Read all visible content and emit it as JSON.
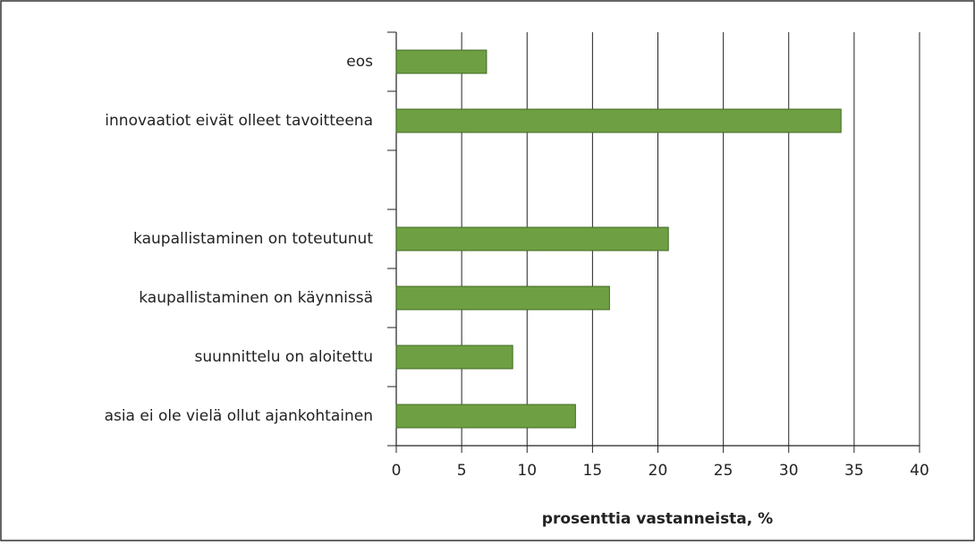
{
  "chart_data": {
    "type": "barh",
    "xlabel": "prosenttia vastanneista, %",
    "categories": [
      "eos",
      "innovaatiot eivät olleet tavoitteena",
      null,
      "kaupallistaminen on toteutunut",
      "kaupallistaminen on käynnissä",
      "suunnittelu on aloitettu",
      "asia ei ole vielä ollut ajankohtainen"
    ],
    "values": [
      6.9,
      34.0,
      null,
      20.8,
      16.3,
      8.9,
      13.7
    ],
    "color": "#6f9f43",
    "xlim": [
      0,
      40
    ],
    "xticks": [
      0,
      5,
      10,
      15,
      20,
      25,
      30,
      35,
      40
    ],
    "grid": true
  }
}
